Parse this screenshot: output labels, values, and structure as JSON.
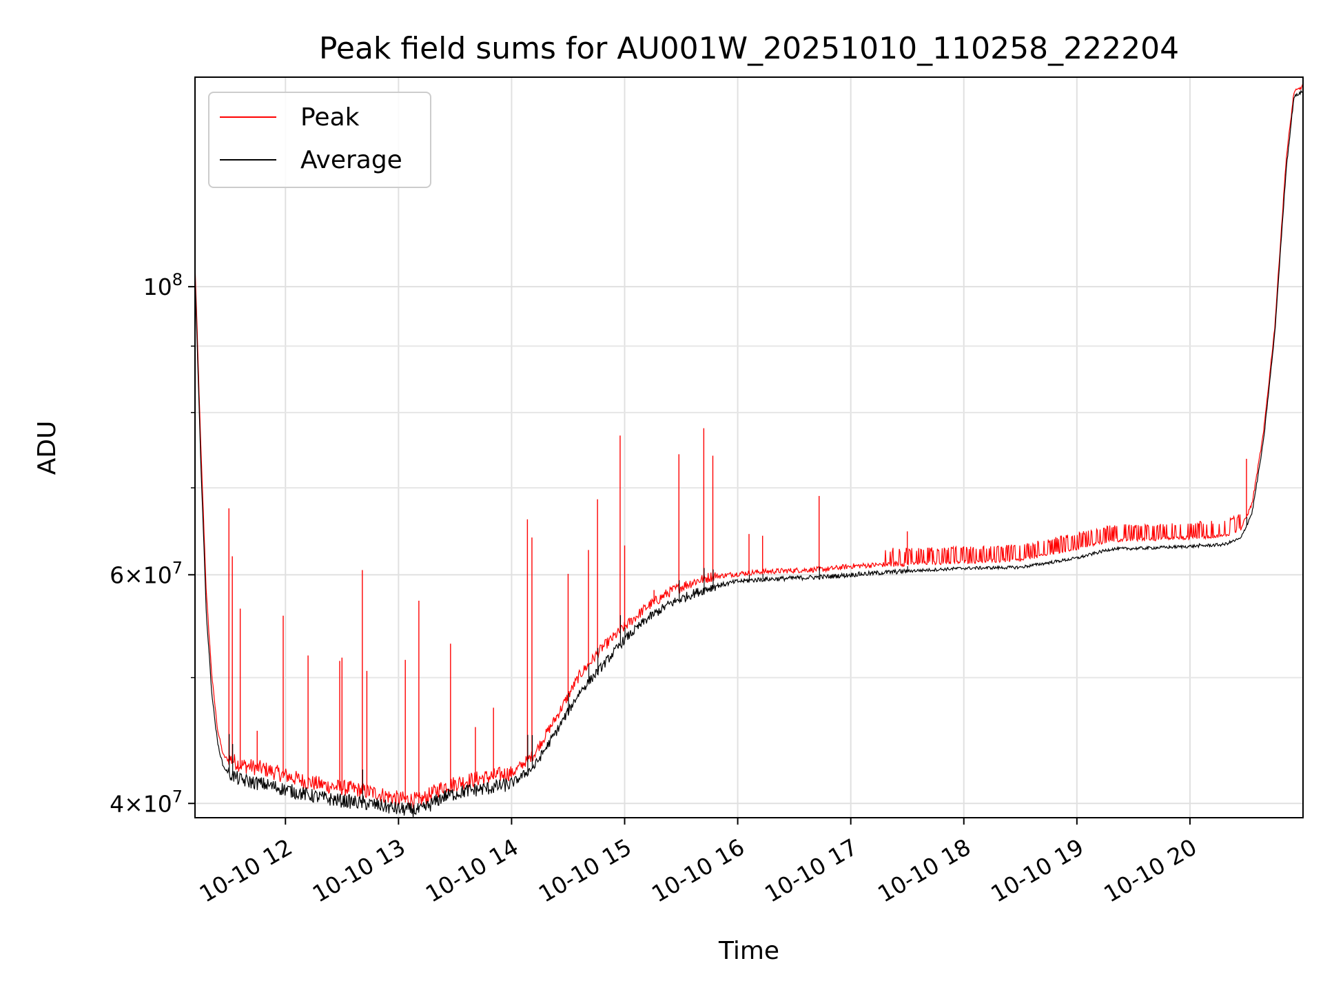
{
  "chart_data": {
    "type": "line",
    "title": "Peak field sums for AU001W_20251010_110258_222204",
    "xlabel": "Time",
    "ylabel": "ADU",
    "yscale": "log",
    "xlim": [
      11.2,
      21.0
    ],
    "ylim": [
      39000000,
      145000000
    ],
    "grid": true,
    "legend_position": "top-left",
    "x_ticks": [
      {
        "value": 12,
        "label": "10-10 12"
      },
      {
        "value": 13,
        "label": "10-10 13"
      },
      {
        "value": 14,
        "label": "10-10 14"
      },
      {
        "value": 15,
        "label": "10-10 15"
      },
      {
        "value": 16,
        "label": "10-10 16"
      },
      {
        "value": 17,
        "label": "10-10 17"
      },
      {
        "value": 18,
        "label": "10-10 18"
      },
      {
        "value": 19,
        "label": "10-10 19"
      },
      {
        "value": 20,
        "label": "10-10 20"
      }
    ],
    "y_ticks": [
      {
        "value": 40000000,
        "mantissa": "4",
        "exp": "7"
      },
      {
        "value": 60000000,
        "mantissa": "6",
        "exp": "7"
      },
      {
        "value": 100000000,
        "mantissa": "",
        "exp": "8"
      }
    ],
    "y_minor_ticks": [
      50000000,
      70000000,
      80000000,
      90000000
    ],
    "series": [
      {
        "name": "Peak",
        "color": "#ff0000",
        "x": [
          11.2,
          11.25,
          11.3,
          11.35,
          11.4,
          11.45,
          11.5,
          11.6,
          11.8,
          12.0,
          12.2,
          12.4,
          12.6,
          12.8,
          13.0,
          13.2,
          13.4,
          13.6,
          13.8,
          14.0,
          14.2,
          14.4,
          14.6,
          14.8,
          15.0,
          15.2,
          15.4,
          15.6,
          15.8,
          16.0,
          16.2,
          16.4,
          16.6,
          16.8,
          17.0,
          17.5,
          18.0,
          18.5,
          19.0,
          19.3,
          19.6,
          20.0,
          20.3,
          20.45,
          20.55,
          20.65,
          20.75,
          20.85,
          20.92,
          21.0
        ],
        "y": [
          104000000,
          76000000,
          58000000,
          50000000,
          45500000,
          43500000,
          43100000,
          42600000,
          42300000,
          41800000,
          41300000,
          41000000,
          40800000,
          40500000,
          40100000,
          40000000,
          41000000,
          41400000,
          41700000,
          42000000,
          43500000,
          46500000,
          50000000,
          52500000,
          54500000,
          56500000,
          58000000,
          59000000,
          59700000,
          60000000,
          60200000,
          60300000,
          60400000,
          60500000,
          60800000,
          61100000,
          61300000,
          61500000,
          62800000,
          63700000,
          63800000,
          64000000,
          64200000,
          65000000,
          68000000,
          77000000,
          93000000,
          125000000,
          141000000,
          142500000
        ],
        "spikes": [
          {
            "x": 11.5,
            "y": 67500000
          },
          {
            "x": 11.53,
            "y": 62000000
          },
          {
            "x": 11.6,
            "y": 56500000
          },
          {
            "x": 11.75,
            "y": 45500000
          },
          {
            "x": 11.98,
            "y": 55800000
          },
          {
            "x": 12.2,
            "y": 52000000
          },
          {
            "x": 12.48,
            "y": 51500000
          },
          {
            "x": 12.5,
            "y": 51800000
          },
          {
            "x": 12.68,
            "y": 60500000
          },
          {
            "x": 12.72,
            "y": 50600000
          },
          {
            "x": 13.06,
            "y": 51600000
          },
          {
            "x": 13.18,
            "y": 57300000
          },
          {
            "x": 13.46,
            "y": 53100000
          },
          {
            "x": 13.68,
            "y": 45800000
          },
          {
            "x": 13.84,
            "y": 47400000
          },
          {
            "x": 14.14,
            "y": 66200000
          },
          {
            "x": 14.18,
            "y": 64100000
          },
          {
            "x": 14.5,
            "y": 60100000
          },
          {
            "x": 14.68,
            "y": 62700000
          },
          {
            "x": 14.76,
            "y": 68600000
          },
          {
            "x": 14.96,
            "y": 76800000
          },
          {
            "x": 15.0,
            "y": 63200000
          },
          {
            "x": 15.26,
            "y": 58400000
          },
          {
            "x": 15.48,
            "y": 74300000
          },
          {
            "x": 15.7,
            "y": 77800000
          },
          {
            "x": 15.78,
            "y": 74100000
          },
          {
            "x": 16.1,
            "y": 64500000
          },
          {
            "x": 16.22,
            "y": 64300000
          },
          {
            "x": 16.72,
            "y": 69000000
          },
          {
            "x": 17.5,
            "y": 64800000
          },
          {
            "x": 20.08,
            "y": 65700000
          },
          {
            "x": 20.5,
            "y": 73700000
          }
        ]
      },
      {
        "name": "Average",
        "color": "#000000",
        "x": [
          11.2,
          11.25,
          11.3,
          11.35,
          11.4,
          11.45,
          11.5,
          11.6,
          11.8,
          12.0,
          12.2,
          12.4,
          12.6,
          12.8,
          13.0,
          13.2,
          13.4,
          13.6,
          13.8,
          14.0,
          14.2,
          14.4,
          14.6,
          14.8,
          15.0,
          15.2,
          15.4,
          15.6,
          15.8,
          16.0,
          16.2,
          16.4,
          16.6,
          16.8,
          17.0,
          17.5,
          18.0,
          18.5,
          19.0,
          19.3,
          19.6,
          20.0,
          20.3,
          20.45,
          20.55,
          20.65,
          20.75,
          20.85,
          20.92,
          21.0
        ],
        "y": [
          102000000,
          74000000,
          56000000,
          48500000,
          44500000,
          42700000,
          42200000,
          41700000,
          41400000,
          41000000,
          40600000,
          40300000,
          40100000,
          39900000,
          39600000,
          39500000,
          40500000,
          40900000,
          41100000,
          41400000,
          42700000,
          45500000,
          48700000,
          51000000,
          53500000,
          55500000,
          57000000,
          58000000,
          58800000,
          59300000,
          59500000,
          59600000,
          59700000,
          59800000,
          60000000,
          60400000,
          60700000,
          60800000,
          61800000,
          62800000,
          62900000,
          63100000,
          63300000,
          64000000,
          67000000,
          76000000,
          92000000,
          123000000,
          140000000,
          141500000
        ]
      }
    ]
  }
}
